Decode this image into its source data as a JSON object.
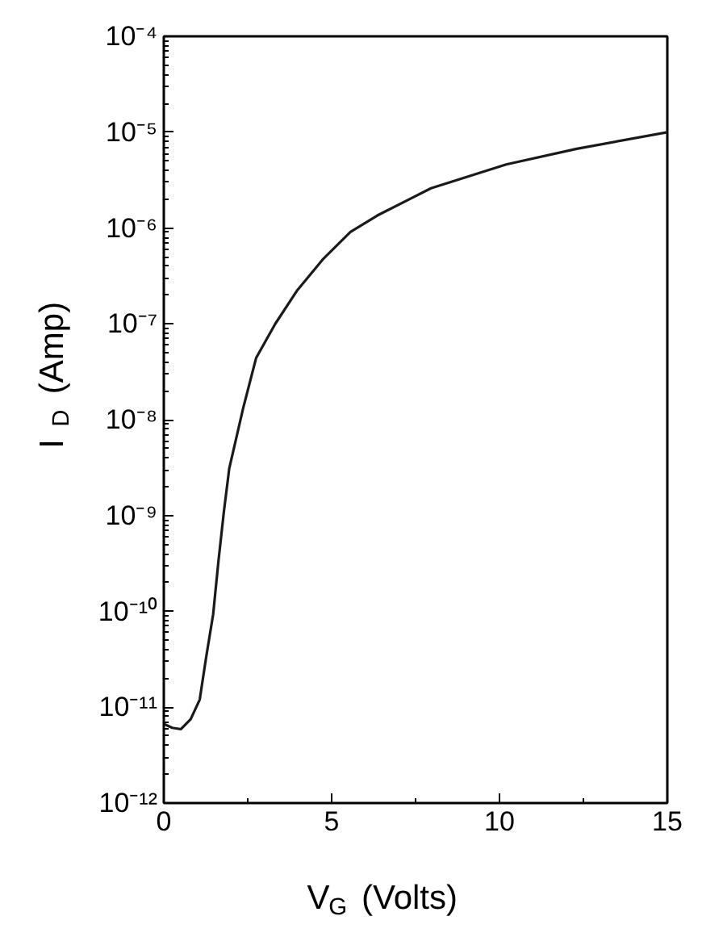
{
  "chart_data": {
    "type": "line",
    "xlabel": "V$_{G}$ (Volts)",
    "ylabel": "I$_{D}$ (Amp)",
    "log": "y",
    "grid": false,
    "marker": "none",
    "line_style": "solid",
    "x": [
      0,
      0.25,
      0.51,
      0.8,
      1.07,
      1.26,
      1.47,
      1.63,
      1.79,
      1.95,
      2.36,
      2.75,
      3.32,
      3.96,
      4.76,
      5.56,
      6.36,
      7.96,
      10.2,
      12.3,
      15
    ],
    "series": [
      {
        "color": "#1a1a1a",
        "values": [
          6.7e-12,
          6.1e-12,
          5.9e-12,
          7.5e-12,
          1.2e-11,
          3.3e-11,
          9.3e-11,
          3.4e-10,
          1.1e-09,
          3.1e-09,
          1.3e-08,
          4.4e-08,
          1e-07,
          2.2e-07,
          4.8e-07,
          9.1e-07,
          1.35e-06,
          2.6e-06,
          4.6e-06,
          6.7e-06,
          1e-05
        ]
      }
    ],
    "xlim": [
      0,
      15
    ],
    "xticks": [
      0,
      5,
      10,
      15
    ],
    "ylim": [
      1e-12,
      0.0001
    ],
    "yticks": [
      {
        "value": 1e-12,
        "label": "10⁻¹²"
      },
      {
        "value": 1e-11,
        "label": "10⁻¹¹"
      },
      {
        "value": 1e-10,
        "label": "10⁻¹⁰"
      },
      {
        "value": 1e-09,
        "label": "10⁻⁹"
      },
      {
        "value": 1e-08,
        "label": "10⁻⁸"
      },
      {
        "value": 1e-07,
        "label": "10⁻⁷"
      },
      {
        "value": 1e-06,
        "label": "10⁻⁶"
      },
      {
        "value": 1e-05,
        "label": "10⁻⁵"
      },
      {
        "value": 0.0001,
        "label": "10⁻⁴"
      }
    ]
  }
}
